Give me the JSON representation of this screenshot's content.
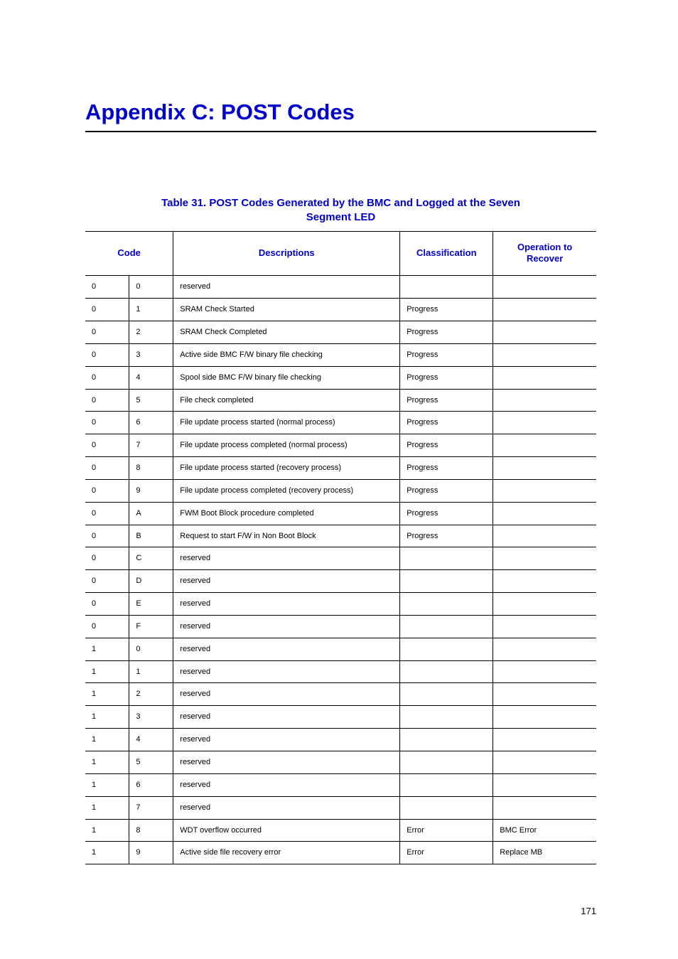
{
  "title": "Appendix C:  POST Codes",
  "table_caption": "Table 31. POST Codes Generated by the BMC and Logged at the Seven Segment LED",
  "columns": {
    "code": "Code",
    "descriptions": "Descriptions",
    "classification": "Classification",
    "operation": "Operation to Recover"
  },
  "rows": [
    {
      "c1": "0",
      "c2": "0",
      "desc": "reserved",
      "class": "",
      "oper": ""
    },
    {
      "c1": "0",
      "c2": "1",
      "desc": "SRAM Check Started",
      "class": "Progress",
      "oper": ""
    },
    {
      "c1": "0",
      "c2": "2",
      "desc": "SRAM Check Completed",
      "class": "Progress",
      "oper": ""
    },
    {
      "c1": "0",
      "c2": "3",
      "desc": "Active side BMC F/W binary file checking",
      "class": "Progress",
      "oper": ""
    },
    {
      "c1": "0",
      "c2": "4",
      "desc": "Spool side BMC F/W binary file checking",
      "class": "Progress",
      "oper": ""
    },
    {
      "c1": "0",
      "c2": "5",
      "desc": "File check completed",
      "class": "Progress",
      "oper": ""
    },
    {
      "c1": "0",
      "c2": "6",
      "desc": "File update process started (normal process)",
      "class": "Progress",
      "oper": ""
    },
    {
      "c1": "0",
      "c2": "7",
      "desc": "File update process completed (normal process)",
      "class": "Progress",
      "oper": ""
    },
    {
      "c1": "0",
      "c2": "8",
      "desc": "File update process started (recovery process)",
      "class": "Progress",
      "oper": ""
    },
    {
      "c1": "0",
      "c2": "9",
      "desc": "File update process completed (recovery process)",
      "class": "Progress",
      "oper": ""
    },
    {
      "c1": "0",
      "c2": "A",
      "desc": "FWM Boot Block procedure completed",
      "class": "Progress",
      "oper": ""
    },
    {
      "c1": "0",
      "c2": "B",
      "desc": "Request to start F/W in Non Boot Block",
      "class": "Progress",
      "oper": ""
    },
    {
      "c1": "0",
      "c2": "C",
      "desc": "reserved",
      "class": "",
      "oper": ""
    },
    {
      "c1": "0",
      "c2": "D",
      "desc": "reserved",
      "class": "",
      "oper": ""
    },
    {
      "c1": "0",
      "c2": "E",
      "desc": "reserved",
      "class": "",
      "oper": ""
    },
    {
      "c1": "0",
      "c2": "F",
      "desc": "reserved",
      "class": "",
      "oper": ""
    },
    {
      "c1": "1",
      "c2": "0",
      "desc": "reserved",
      "class": "",
      "oper": ""
    },
    {
      "c1": "1",
      "c2": "1",
      "desc": "reserved",
      "class": "",
      "oper": ""
    },
    {
      "c1": "1",
      "c2": "2",
      "desc": "reserved",
      "class": "",
      "oper": ""
    },
    {
      "c1": "1",
      "c2": "3",
      "desc": "reserved",
      "class": "",
      "oper": ""
    },
    {
      "c1": "1",
      "c2": "4",
      "desc": "reserved",
      "class": "",
      "oper": ""
    },
    {
      "c1": "1",
      "c2": "5",
      "desc": "reserved",
      "class": "",
      "oper": ""
    },
    {
      "c1": "1",
      "c2": "6",
      "desc": "reserved",
      "class": "",
      "oper": ""
    },
    {
      "c1": "1",
      "c2": "7",
      "desc": "reserved",
      "class": "",
      "oper": ""
    },
    {
      "c1": "1",
      "c2": "8",
      "desc": "WDT overflow occurred",
      "class": "Error",
      "oper": "BMC Error"
    },
    {
      "c1": "1",
      "c2": "9",
      "desc": "Active side file recovery error",
      "class": "Error",
      "oper": "Replace MB"
    }
  ],
  "page_number": "171",
  "colors": {
    "heading_blue": "#0000cc",
    "text_black": "#000000",
    "background": "#ffffff"
  }
}
